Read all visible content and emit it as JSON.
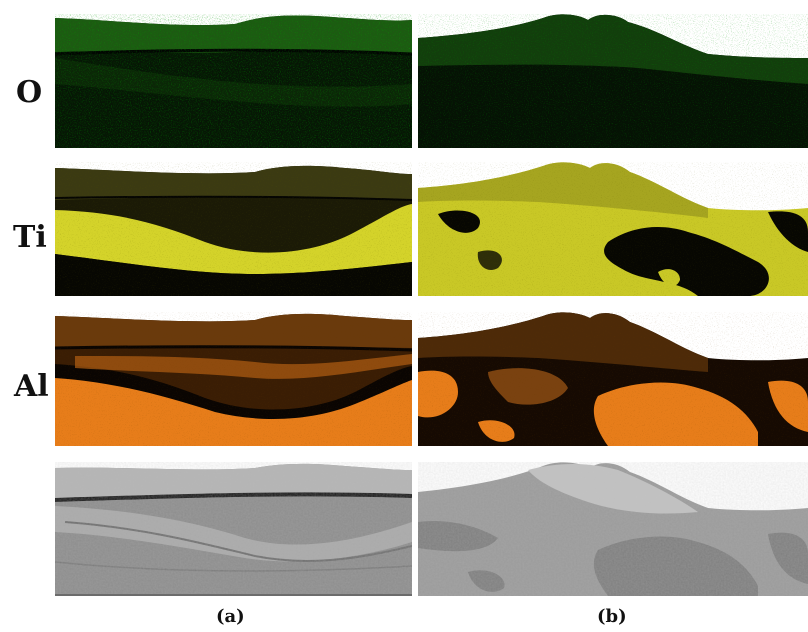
{
  "figure": {
    "row_labels": {
      "oxygen": "O",
      "titanium": "Ti",
      "aluminum": "Al"
    },
    "column_labels": {
      "a": "(a)",
      "b": "(b)"
    },
    "map_colors": {
      "oxygen": "#2e8a1f",
      "titanium": "#d8d62a",
      "aluminum": "#ee7f1c",
      "background": "#000000",
      "sem_gray": "#8e8e8e"
    },
    "panels": [
      {
        "row": "oxygen",
        "column": "a"
      },
      {
        "row": "oxygen",
        "column": "b"
      },
      {
        "row": "titanium",
        "column": "a"
      },
      {
        "row": "titanium",
        "column": "b"
      },
      {
        "row": "aluminum",
        "column": "a"
      },
      {
        "row": "aluminum",
        "column": "b"
      },
      {
        "row": "sem",
        "column": "a"
      },
      {
        "row": "sem",
        "column": "b"
      }
    ]
  }
}
